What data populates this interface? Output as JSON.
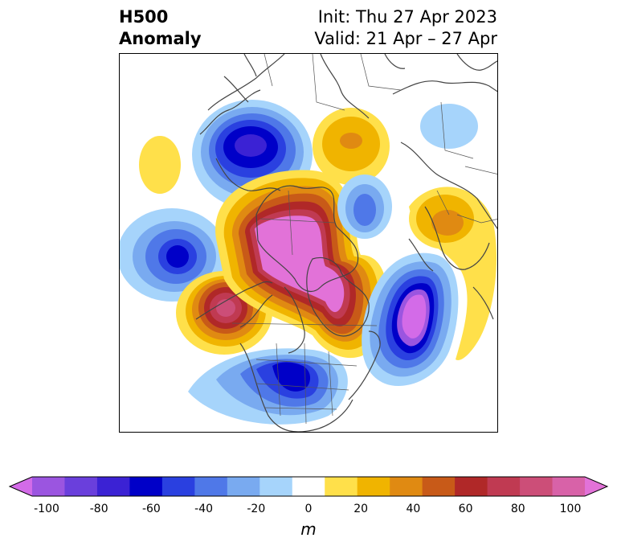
{
  "title": {
    "left_line1": "H500",
    "left_line2": "Anomaly",
    "right_line1": "Init: Thu 27 Apr 2023",
    "right_line2": "Valid: 21 Apr – 27 Apr"
  },
  "colorbar": {
    "ticks": [
      "-100",
      "-80",
      "-60",
      "-40",
      "-20",
      "0",
      "20",
      "40",
      "60",
      "80",
      "100"
    ],
    "units": "m",
    "colors": [
      "#d36be8",
      "#9b55e0",
      "#6a3fdc",
      "#3b22d4",
      "#0000c8",
      "#2a40e0",
      "#4f78e8",
      "#79aaf0",
      "#a6d4fb",
      "#ffffff",
      "#ffe04a",
      "#f0b400",
      "#e08a12",
      "#c85a18",
      "#b02828",
      "#c03a52",
      "#cc4e78",
      "#d862a8",
      "#e272d8"
    ]
  },
  "map": {
    "projection": "polar-stereographic",
    "anomaly_centers": [
      {
        "name": "pacific-northwest-low",
        "sign": "negative"
      },
      {
        "name": "north-pacific-low",
        "sign": "negative"
      },
      {
        "name": "bering-ridge",
        "sign": "positive"
      },
      {
        "name": "arctic-canada-ridge",
        "sign": "positive"
      },
      {
        "name": "gulf-of-alaska-high",
        "sign": "positive"
      },
      {
        "name": "us-southeast-low",
        "sign": "negative"
      },
      {
        "name": "north-atlantic-low",
        "sign": "negative"
      },
      {
        "name": "scandinavia-high",
        "sign": "positive"
      },
      {
        "name": "siberia-high",
        "sign": "positive"
      },
      {
        "name": "siberia-small-low",
        "sign": "negative"
      }
    ]
  }
}
